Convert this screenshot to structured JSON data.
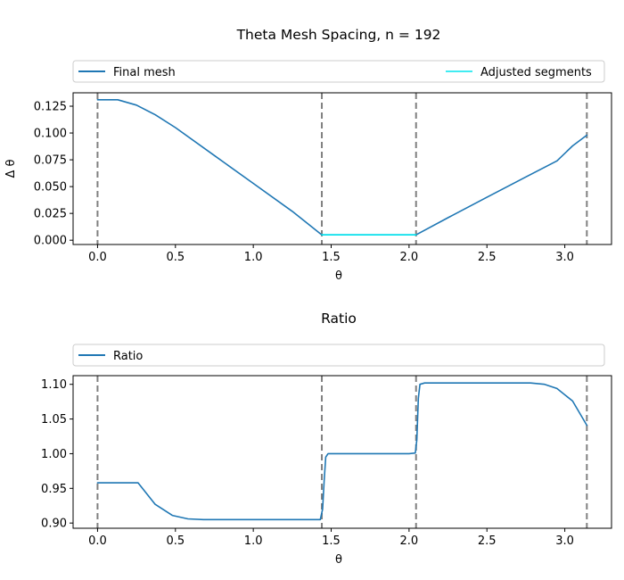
{
  "chart_data": [
    {
      "type": "line",
      "title": "Theta Mesh Spacing, n = 192",
      "xlabel": "θ",
      "ylabel": "Δ θ",
      "xlim": [
        -0.157,
        3.3
      ],
      "ylim": [
        -0.004,
        0.1375
      ],
      "xticks": [
        0.0,
        0.5,
        1.0,
        1.5,
        2.0,
        2.5,
        3.0
      ],
      "xtick_labels": [
        "0.0",
        "0.5",
        "1.0",
        "1.5",
        "2.0",
        "2.5",
        "3.0"
      ],
      "yticks": [
        0.0,
        0.025,
        0.05,
        0.075,
        0.1,
        0.125
      ],
      "ytick_labels": [
        "0.000",
        "0.025",
        "0.050",
        "0.075",
        "0.100",
        "0.125"
      ],
      "vlines": [
        0.0,
        1.44,
        2.045,
        3.1416
      ],
      "grid": false,
      "legend_position": "top, above plot",
      "series": [
        {
          "name": "Final mesh",
          "color": "#1f77b4",
          "x": [
            0.0,
            0.13,
            0.25,
            0.37,
            0.5,
            0.75,
            1.0,
            1.25,
            1.44,
            2.045,
            2.25,
            2.5,
            2.75,
            2.95,
            3.05,
            3.1416
          ],
          "y": [
            0.131,
            0.131,
            0.126,
            0.117,
            0.105,
            0.079,
            0.053,
            0.027,
            0.005,
            0.005,
            0.021,
            0.04,
            0.059,
            0.074,
            0.088,
            0.098
          ]
        },
        {
          "name": "Adjusted segments",
          "color": "#00e5ee",
          "x": [
            1.44,
            2.045
          ],
          "y": [
            0.005,
            0.005
          ]
        }
      ]
    },
    {
      "type": "line",
      "title": "Ratio",
      "xlabel": "θ",
      "ylabel": "",
      "xlim": [
        -0.157,
        3.3
      ],
      "ylim": [
        0.8925,
        1.1125
      ],
      "xticks": [
        0.0,
        0.5,
        1.0,
        1.5,
        2.0,
        2.5,
        3.0
      ],
      "xtick_labels": [
        "0.0",
        "0.5",
        "1.0",
        "1.5",
        "2.0",
        "2.5",
        "3.0"
      ],
      "yticks": [
        0.9,
        0.95,
        1.0,
        1.05,
        1.1
      ],
      "ytick_labels": [
        "0.90",
        "0.95",
        "1.00",
        "1.05",
        "1.10"
      ],
      "vlines": [
        0.0,
        1.44,
        2.045,
        3.1416
      ],
      "grid": false,
      "legend_position": "top, above plot",
      "series": [
        {
          "name": "Ratio",
          "color": "#1f77b4",
          "x": [
            0.0,
            0.13,
            0.26,
            0.37,
            0.48,
            0.58,
            0.68,
            0.8,
            1.0,
            1.2,
            1.43,
            1.445,
            1.455,
            1.465,
            1.48,
            1.6,
            1.8,
            2.0,
            2.04,
            2.05,
            2.06,
            2.07,
            2.1,
            2.5,
            2.78,
            2.87,
            2.95,
            3.05,
            3.1416
          ],
          "y": [
            0.958,
            0.958,
            0.958,
            0.927,
            0.911,
            0.906,
            0.905,
            0.905,
            0.905,
            0.905,
            0.905,
            0.92,
            0.96,
            0.995,
            1.0,
            1.0,
            1.0,
            1.0,
            1.001,
            1.02,
            1.08,
            1.1,
            1.102,
            1.102,
            1.102,
            1.1,
            1.094,
            1.076,
            1.041
          ]
        }
      ]
    }
  ]
}
